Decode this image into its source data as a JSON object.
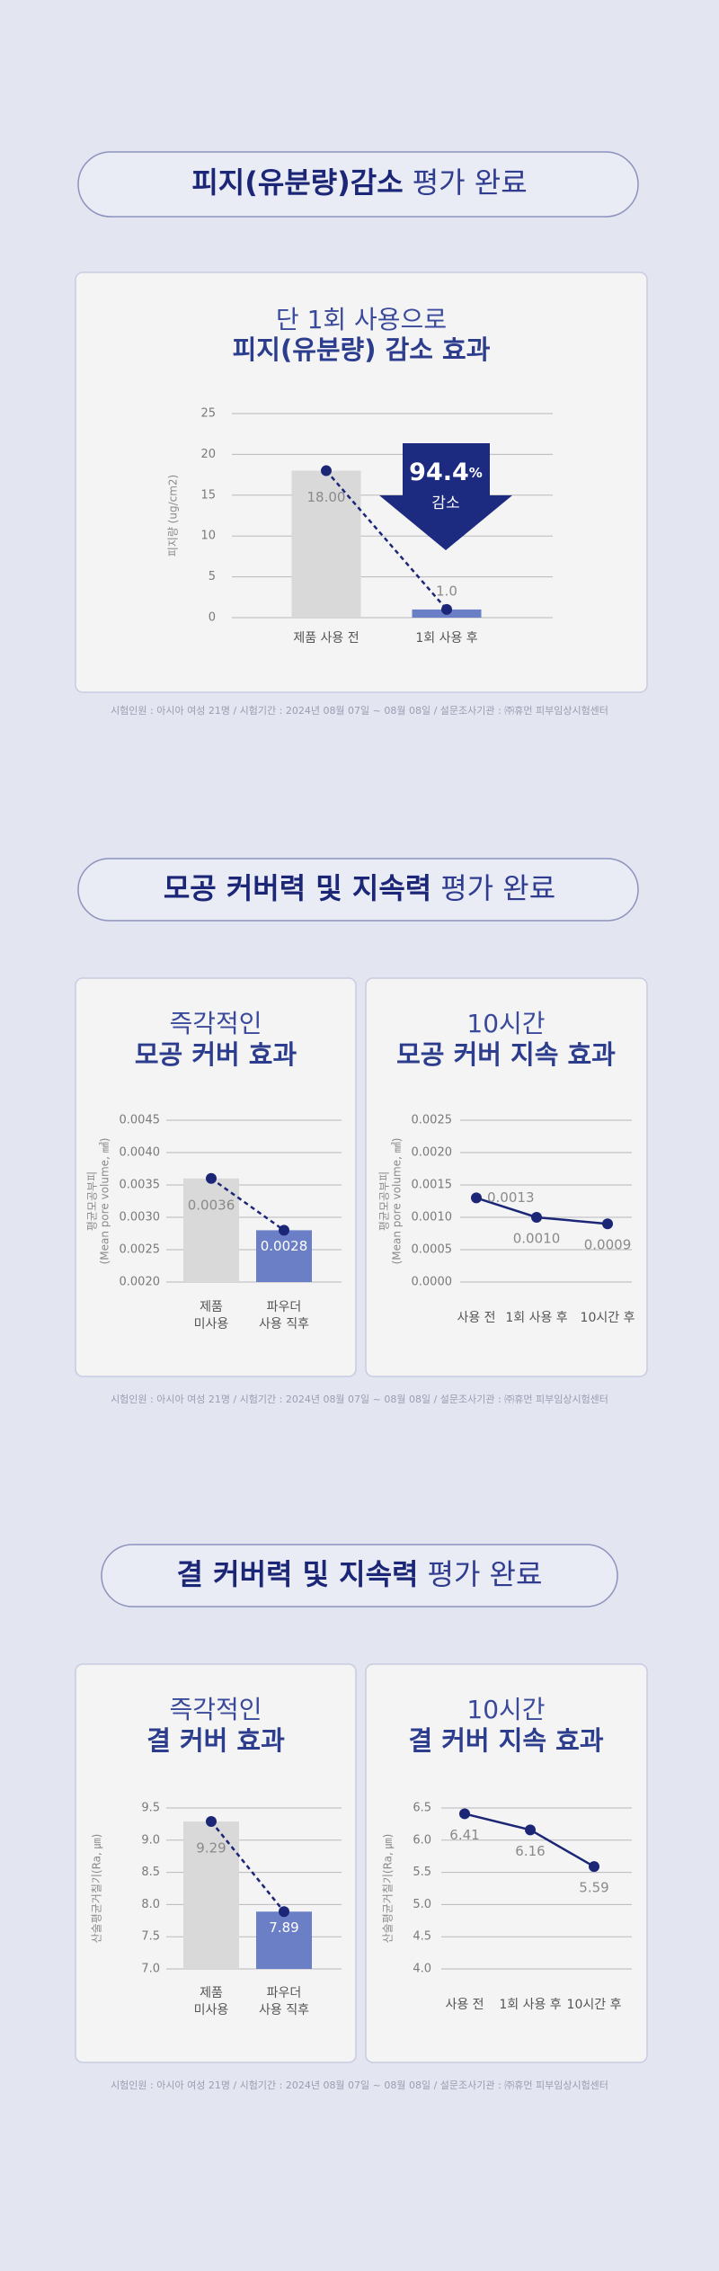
{
  "sections": [
    {
      "heading_bold": "피지(유분량)감소",
      "heading_rest": "평가 완료",
      "footnote": "시험인원 : 아시아 여성 21명 / 시험기간 : 2024년 08월 07일 ~ 08월 08일 / 설문조사기관 : ㈜휴먼 피부임상시험센터"
    },
    {
      "heading_bold": "모공 커버력 및 지속력",
      "heading_rest": "평가 완료",
      "footnote": "시험인원 : 아시아 여성 21명 / 시험기간 : 2024년 08월 07일 ~ 08월 08일 / 설문조사기관 : ㈜휴먼 피부임상시험센터"
    },
    {
      "heading_bold": "결 커버력 및 지속력",
      "heading_rest": "평가 완료",
      "footnote": "시험인원 : 아시아 여성 21명 / 시험기간 : 2024년 08월 07일 ~ 08월 08일 / 설문조사기관 : ㈜휴먼 피부임상시험센터"
    }
  ],
  "chart_data": [
    {
      "type": "bar",
      "title_lines": [
        "단 1회 사용으로",
        "피지(유분량) 감소 효과"
      ],
      "y_label": [
        "피지량 (ug/cm2)"
      ],
      "categories": [
        "제품 사용 전",
        "1회 사용 후"
      ],
      "values": [
        18,
        1
      ],
      "value_labels": [
        "18.00",
        "1.0"
      ],
      "colors": [
        "#d9d9d9",
        "#6b7fc7"
      ],
      "line_color": "#1c2677",
      "ylim": [
        0,
        25
      ],
      "yticks": [
        0,
        5,
        10,
        15,
        20,
        25
      ],
      "grid": true,
      "annotation": {
        "value": "94.4",
        "unit": "%",
        "label": "감소"
      }
    },
    {
      "type": "bar",
      "title_lines": [
        "즉각적인",
        "모공 커버 효과"
      ],
      "y_label": [
        "평균모공부피",
        "(Mean pore volume, ㎣)"
      ],
      "categories": [
        "제품\n미사용",
        "파우더\n사용 직후"
      ],
      "values": [
        0.0036,
        0.0028
      ],
      "value_labels": [
        "0.0036",
        "0.0028"
      ],
      "colors": [
        "#d9d9d9",
        "#6b7fc7"
      ],
      "line_color": "#1c2677",
      "ylim": [
        0.002,
        0.0045
      ],
      "yticks": [
        {
          "value": 0.002,
          "label": "0.0020"
        },
        {
          "value": 0.0025,
          "label": "0.0025"
        },
        {
          "value": 0.003,
          "label": "0.0030"
        },
        {
          "value": 0.0035,
          "label": "0.0035"
        },
        {
          "value": 0.004,
          "label": "0.0040"
        },
        {
          "value": 0.0045,
          "label": "0.0045"
        }
      ],
      "grid": true
    },
    {
      "type": "line",
      "title_lines": [
        "10시간",
        "모공 커버 지속 효과"
      ],
      "y_label": [
        "평균모공부피",
        "(Mean pore volume, ㎣)"
      ],
      "categories": [
        "사용 전",
        "1회 사용 후",
        "10시간 후"
      ],
      "values": [
        0.0013,
        0.001,
        0.0009
      ],
      "value_labels": [
        "0.0013",
        "0.0010",
        "0.0009"
      ],
      "color": "#1c2677",
      "ylim": [
        0,
        0.0025
      ],
      "yticks": [
        {
          "value": 0,
          "label": "0.0000"
        },
        {
          "value": 0.0005,
          "label": "0.0005"
        },
        {
          "value": 0.001,
          "label": "0.0010"
        },
        {
          "value": 0.0015,
          "label": "0.0015"
        },
        {
          "value": 0.002,
          "label": "0.0020"
        },
        {
          "value": 0.0025,
          "label": "0.0025"
        }
      ],
      "grid": true
    },
    {
      "type": "bar",
      "title_lines": [
        "즉각적인",
        "결 커버 효과"
      ],
      "y_label": [
        "산술평균거칠기(Ra, ㎛)"
      ],
      "categories": [
        "제품\n미사용",
        "파우더\n사용 직후"
      ],
      "values": [
        9.29,
        7.89
      ],
      "colors": [
        "#d9d9d9",
        "#6b7fc7"
      ],
      "line_color": "#1c2677",
      "ylim": [
        7,
        9.5
      ],
      "yticks": [
        {
          "value": 7,
          "label": "7.0"
        },
        7.5,
        {
          "value": 8,
          "label": "8.0"
        },
        8.5,
        {
          "value": 9,
          "label": "9.0"
        },
        9.5
      ],
      "grid": true
    },
    {
      "type": "line",
      "title_lines": [
        "10시간",
        "결 커버 지속 효과"
      ],
      "y_label": [
        "산술평균거칠기(Ra, ㎛)"
      ],
      "categories": [
        "사용 전",
        "1회 사용 후",
        "10시간 후"
      ],
      "values": [
        6.41,
        6.16,
        5.59
      ],
      "color": "#1c2677",
      "ylim": [
        4,
        6.5
      ],
      "yticks": [
        {
          "value": 4,
          "label": "4.0"
        },
        4.5,
        {
          "value": 5,
          "label": "5.0"
        },
        5.5,
        {
          "value": 6,
          "label": "6.0"
        },
        6.5
      ],
      "grid": true
    }
  ]
}
